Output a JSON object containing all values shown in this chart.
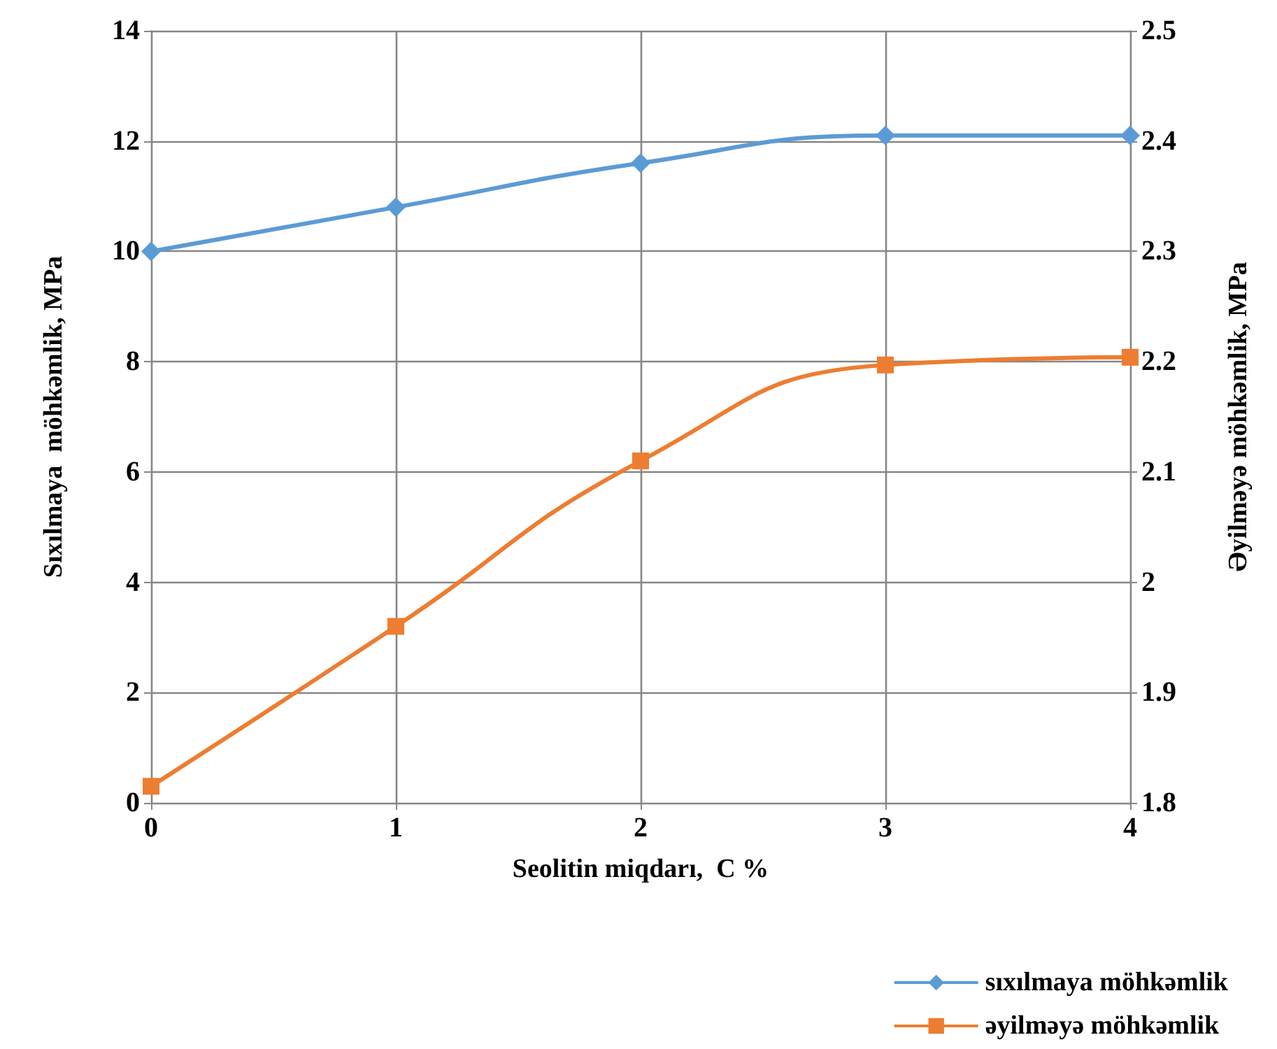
{
  "chart_data": {
    "type": "line",
    "xlabel": "Seolitin miqdarı,  C %",
    "ylabel": "Sıxılmaya  möhkəmlik, MPa",
    "y2label": "Əyilməyə möhkəmlik, MPa",
    "x": [
      0,
      1,
      2,
      3,
      4
    ],
    "xlim": [
      0,
      4
    ],
    "xticks": [
      0,
      1,
      2,
      3,
      4
    ],
    "ylim": [
      0,
      14
    ],
    "yticks": [
      0,
      2,
      4,
      6,
      8,
      10,
      12,
      14
    ],
    "y2lim": [
      1.8,
      2.5
    ],
    "y2ticks": [
      1.8,
      1.9,
      2,
      2.1,
      2.2,
      2.3,
      2.4,
      2.5
    ],
    "grid": true,
    "legend": "bottom right",
    "series": [
      {
        "name": "sıxılmaya möhkəmlik",
        "color": "#5b9bd5",
        "marker": "diamond",
        "values": [
          10,
          10.8,
          11.6,
          12.1,
          12.1
        ]
      },
      {
        "name": "əyilməyə möhkəmlik",
        "color": "#ed7d31",
        "marker": "square",
        "axis": "y2",
        "values": [
          1.815,
          1.96,
          2.11,
          2.197,
          2.204
        ]
      }
    ]
  }
}
